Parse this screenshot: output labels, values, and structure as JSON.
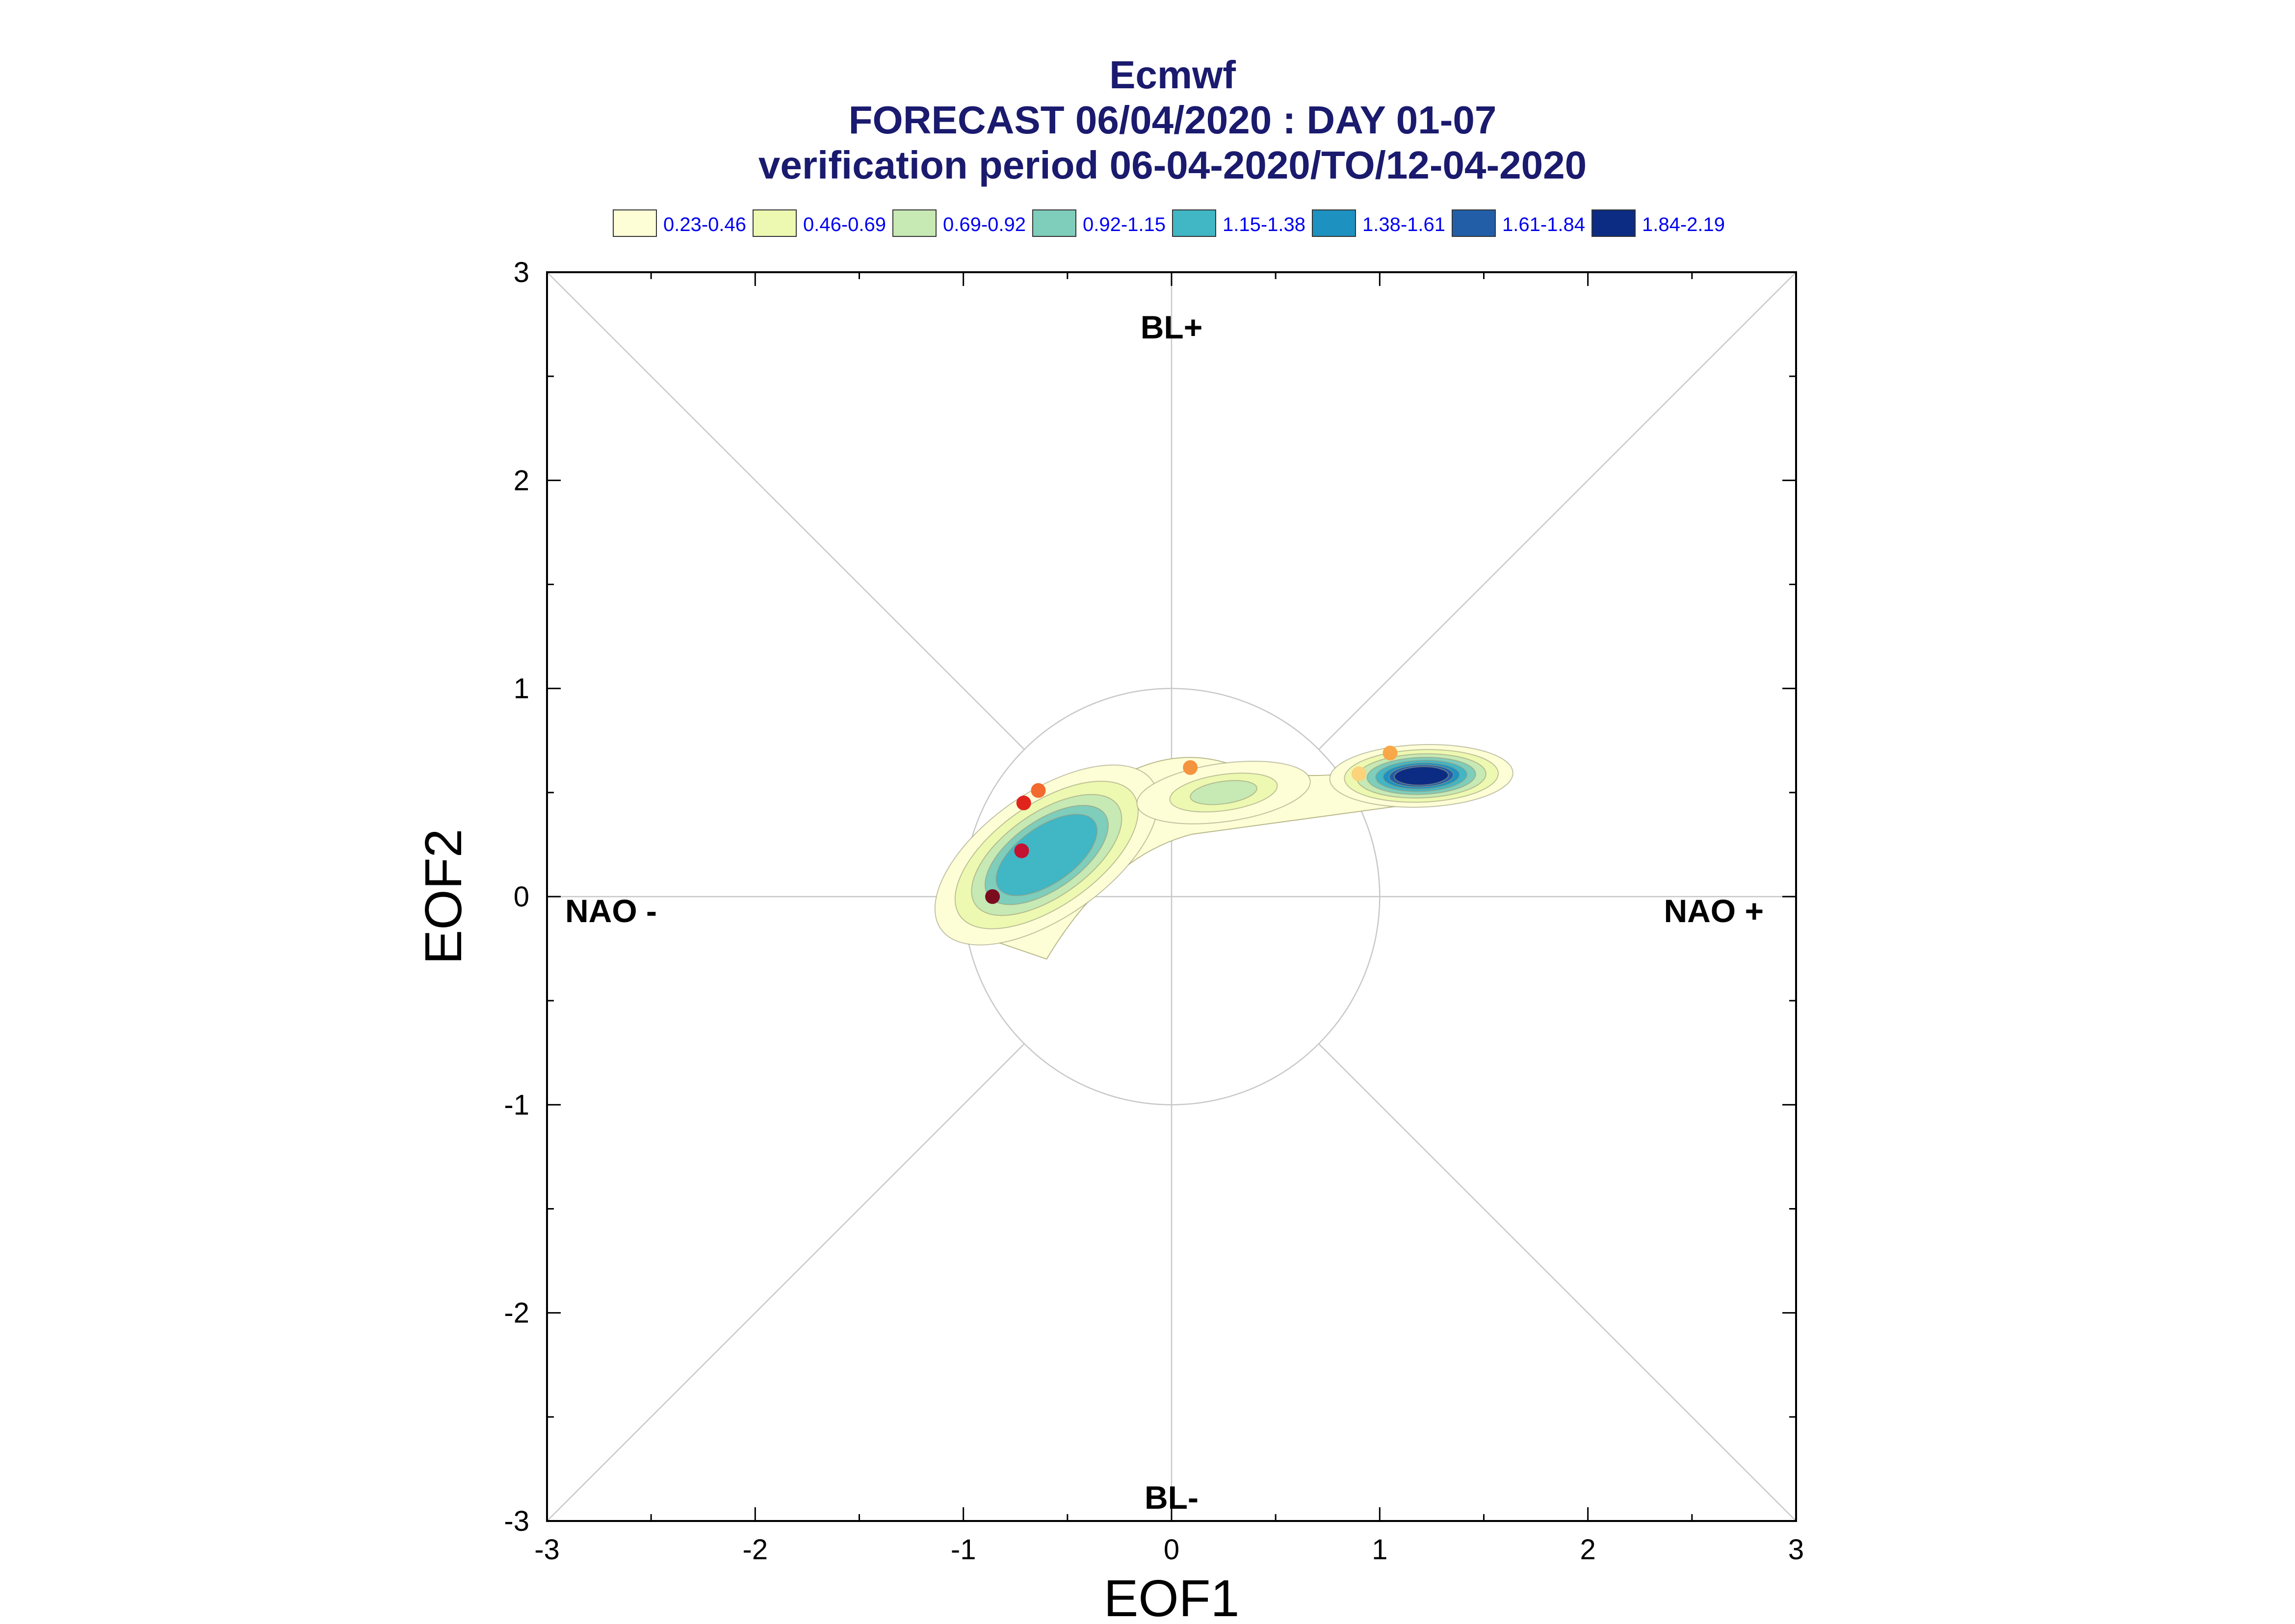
{
  "chart_data": {
    "type": "scatter",
    "title_lines": [
      "Ecmwf",
      "FORECAST 06/04/2020 : DAY 01-07",
      "verification period 06-04-2020/TO/12-04-2020"
    ],
    "xlabel": "EOF1",
    "ylabel": "EOF2",
    "xlim": [
      -3,
      3
    ],
    "ylim": [
      -3,
      3
    ],
    "x_ticks": [
      "-3",
      "-2",
      "-1",
      "0",
      "1",
      "2",
      "3"
    ],
    "y_ticks": [
      "-3",
      "-2",
      "-1",
      "0",
      "1",
      "2",
      "3"
    ],
    "grid": false,
    "reference_circle_radius": 1,
    "regime_labels": {
      "top": "BL+",
      "bottom": "BL-",
      "left": "NAO -",
      "right": "NAO +"
    },
    "legend": {
      "placement": "top",
      "entries": [
        {
          "label": "0.23-0.46",
          "color": "#fdfed6"
        },
        {
          "label": "0.46-0.69",
          "color": "#edf8b1"
        },
        {
          "label": "0.69-0.92",
          "color": "#c7e9b4"
        },
        {
          "label": "0.92-1.15",
          "color": "#7fcdbb"
        },
        {
          "label": "1.15-1.38",
          "color": "#41b6c4"
        },
        {
          "label": "1.38-1.61",
          "color": "#1d91c0"
        },
        {
          "label": "1.61-1.84",
          "color": "#225ea8"
        },
        {
          "label": "1.84-2.19",
          "color": "#0c2c84"
        }
      ]
    },
    "density_centers": [
      {
        "x": -0.6,
        "y": 0.2,
        "peak_level": 5
      },
      {
        "x": 0.25,
        "y": 0.5,
        "peak_level": 3
      },
      {
        "x": 1.2,
        "y": 0.58,
        "peak_level": 8
      }
    ],
    "points": [
      {
        "x": -0.86,
        "y": 0.0,
        "color": "#7a0c1e"
      },
      {
        "x": -0.72,
        "y": 0.22,
        "color": "#c41230"
      },
      {
        "x": -0.71,
        "y": 0.45,
        "color": "#e0241c"
      },
      {
        "x": -0.64,
        "y": 0.51,
        "color": "#f26a2d"
      },
      {
        "x": 0.09,
        "y": 0.62,
        "color": "#f5943f"
      },
      {
        "x": 0.9,
        "y": 0.59,
        "color": "#fcd27a"
      },
      {
        "x": 1.05,
        "y": 0.69,
        "color": "#f8a848"
      }
    ]
  }
}
